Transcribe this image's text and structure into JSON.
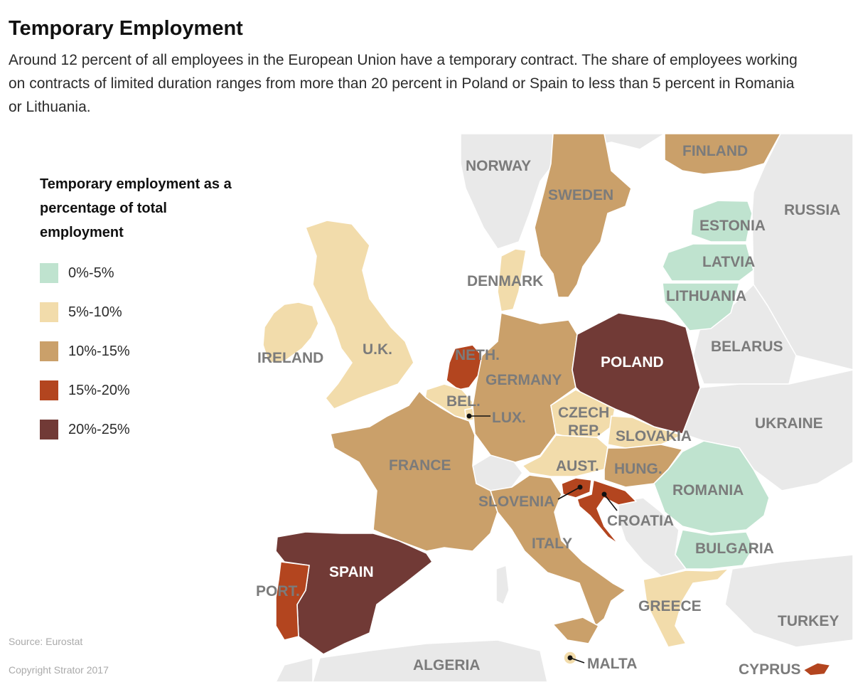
{
  "header": {
    "title": "Temporary Employment",
    "subtitle": "Around 12 percent of all employees in the European Union have a temporary contract. The share of employees working on contracts of limited duration ranges from more than 20 percent in Poland or Spain to less than 5 percent in Romania or Lithuania."
  },
  "legend": {
    "title": "Temporary employment as a percentage of total employment",
    "items": [
      {
        "label": "0%-5%",
        "color": "#bfe3cf"
      },
      {
        "label": "5%-10%",
        "color": "#f2dcab"
      },
      {
        "label": "10%-15%",
        "color": "#caa06a"
      },
      {
        "label": "15%-20%",
        "color": "#b3451f"
      },
      {
        "label": "20%-25%",
        "color": "#713a36"
      }
    ]
  },
  "map": {
    "no_data_color": "#e9e9e9",
    "countries": [
      {
        "name": "FINLAND",
        "category": "10%-15%"
      },
      {
        "name": "SWEDEN",
        "category": "10%-15%"
      },
      {
        "name": "ESTONIA",
        "category": "0%-5%"
      },
      {
        "name": "LATVIA",
        "category": "0%-5%"
      },
      {
        "name": "LITHUANIA",
        "category": "0%-5%"
      },
      {
        "name": "DENMARK",
        "category": "5%-10%"
      },
      {
        "name": "IRELAND",
        "category": "5%-10%"
      },
      {
        "name": "U.K.",
        "category": "5%-10%"
      },
      {
        "name": "NETH.",
        "category": "15%-20%"
      },
      {
        "name": "BEL.",
        "category": "5%-10%"
      },
      {
        "name": "LUX.",
        "category": "5%-10%"
      },
      {
        "name": "GERMANY",
        "category": "10%-15%"
      },
      {
        "name": "POLAND",
        "category": "20%-25%"
      },
      {
        "name": "CZECH REP.",
        "category": "5%-10%"
      },
      {
        "name": "SLOVAKIA",
        "category": "5%-10%"
      },
      {
        "name": "AUST.",
        "category": "5%-10%"
      },
      {
        "name": "HUNG.",
        "category": "10%-15%"
      },
      {
        "name": "FRANCE",
        "category": "10%-15%"
      },
      {
        "name": "SLOVENIA",
        "category": "15%-20%"
      },
      {
        "name": "CROATIA",
        "category": "15%-20%"
      },
      {
        "name": "ROMANIA",
        "category": "0%-5%"
      },
      {
        "name": "BULGARIA",
        "category": "0%-5%"
      },
      {
        "name": "ITALY",
        "category": "10%-15%"
      },
      {
        "name": "GREECE",
        "category": "5%-10%"
      },
      {
        "name": "SPAIN",
        "category": "20%-25%"
      },
      {
        "name": "PORT.",
        "category": "15%-20%"
      },
      {
        "name": "MALTA",
        "category": "5%-10%"
      },
      {
        "name": "CYPRUS",
        "category": "15%-20%"
      }
    ],
    "other_labels": [
      "NORWAY",
      "RUSSIA",
      "BELARUS",
      "UKRAINE",
      "TURKEY",
      "ALGERIA"
    ],
    "label_text": {
      "finland": "FINLAND",
      "norway": "NORWAY",
      "sweden": "SWEDEN",
      "russia": "RUSSIA",
      "estonia": "ESTONIA",
      "latvia": "LATVIA",
      "lithuania": "LITHUANIA",
      "denmark": "DENMARK",
      "belarus": "BELARUS",
      "ireland": "IRELAND",
      "uk": "U.K.",
      "neth": "NETH.",
      "germany": "GERMANY",
      "poland": "POLAND",
      "bel": "BEL.",
      "lux": "LUX.",
      "czech_1": "CZECH",
      "czech_2": "REP.",
      "slovakia": "SLOVAKIA",
      "ukraine": "UKRAINE",
      "france": "FRANCE",
      "aust": "AUST.",
      "hung": "HUNG.",
      "romania": "ROMANIA",
      "slovenia": "SLOVENIA",
      "croatia": "CROATIA",
      "italy": "ITALY",
      "bulgaria": "BULGARIA",
      "spain": "SPAIN",
      "port": "PORT.",
      "greece": "GREECE",
      "turkey": "TURKEY",
      "algeria": "ALGERIA",
      "malta": "MALTA",
      "cyprus": "CYPRUS"
    }
  },
  "footer": {
    "source": "Source: Eurostat",
    "copyright": "Copyright Strator 2017"
  }
}
